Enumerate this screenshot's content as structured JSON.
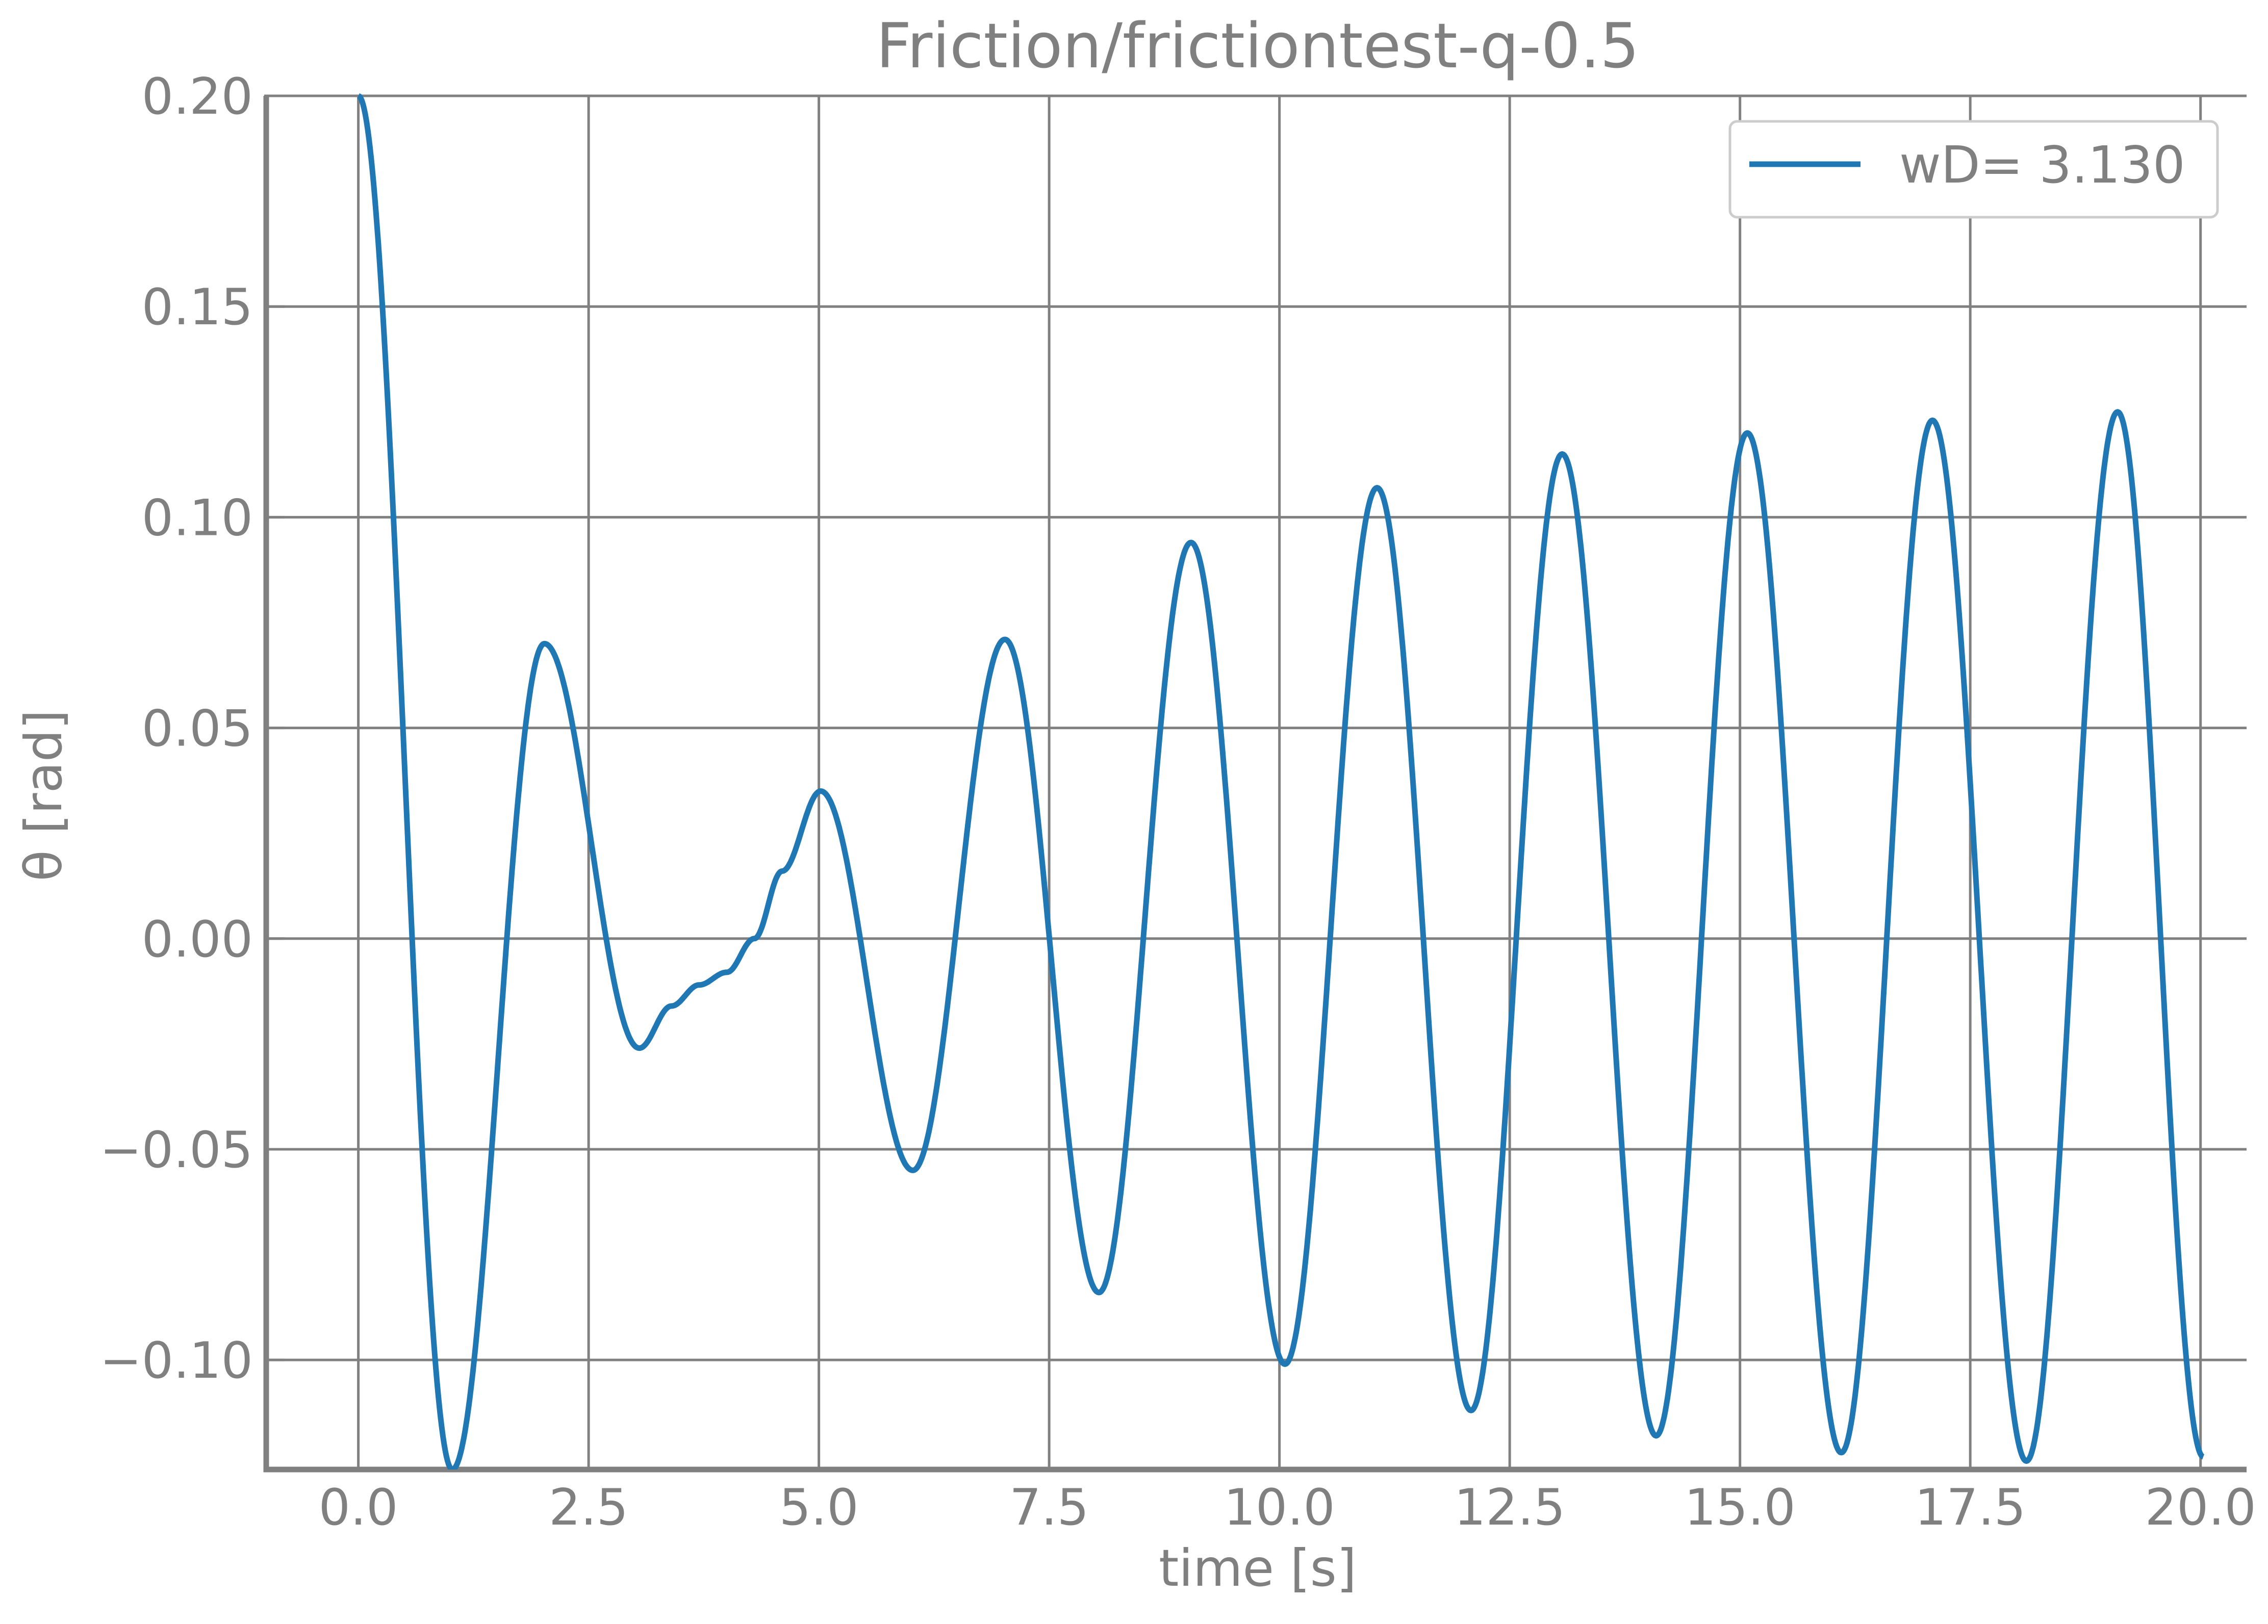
{
  "chart_data": {
    "type": "line",
    "title": "Friction/frictiontest-q-0.5",
    "xlabel": "time [s]",
    "ylabel": "θ [rad]",
    "xlim": [
      -1.0,
      20.5
    ],
    "ylim": [
      -0.126,
      0.2
    ],
    "xticks": [
      0.0,
      2.5,
      5.0,
      7.5,
      10.0,
      12.5,
      15.0,
      17.5,
      20.0
    ],
    "xtick_labels": [
      "0.0",
      "2.5",
      "5.0",
      "7.5",
      "10.0",
      "12.5",
      "15.0",
      "17.5",
      "20.0"
    ],
    "yticks": [
      -0.1,
      -0.05,
      0.0,
      0.05,
      0.1,
      0.15,
      0.2
    ],
    "ytick_labels": [
      "−0.10",
      "−0.05",
      "0.00",
      "0.05",
      "0.10",
      "0.15",
      "0.20"
    ],
    "grid": true,
    "legend_position": "top-right",
    "series": [
      {
        "name": "wD= 3.130",
        "color": "#1f77b4",
        "extrema": [
          [
            0.0,
            0.2
          ],
          [
            1.02,
            -0.126
          ],
          [
            2.02,
            0.07
          ],
          [
            3.05,
            -0.026
          ],
          [
            5.02,
            0.035
          ],
          [
            6.02,
            -0.055
          ],
          [
            7.02,
            0.071
          ],
          [
            8.04,
            -0.084
          ],
          [
            9.04,
            0.094
          ],
          [
            10.06,
            -0.101
          ],
          [
            11.06,
            0.107
          ],
          [
            12.08,
            -0.112
          ],
          [
            13.07,
            0.115
          ],
          [
            14.09,
            -0.118
          ],
          [
            15.08,
            0.12
          ],
          [
            16.1,
            -0.122
          ],
          [
            17.09,
            0.123
          ],
          [
            18.11,
            -0.124
          ],
          [
            19.1,
            0.125
          ],
          [
            20.03,
            -0.123
          ]
        ],
        "shoulder": [
          [
            3.05,
            -0.026
          ],
          [
            3.4,
            -0.016
          ],
          [
            3.7,
            -0.011
          ],
          [
            4.0,
            -0.008
          ],
          [
            4.3,
            0.0
          ],
          [
            4.6,
            0.016
          ],
          [
            5.02,
            0.035
          ]
        ]
      }
    ]
  }
}
